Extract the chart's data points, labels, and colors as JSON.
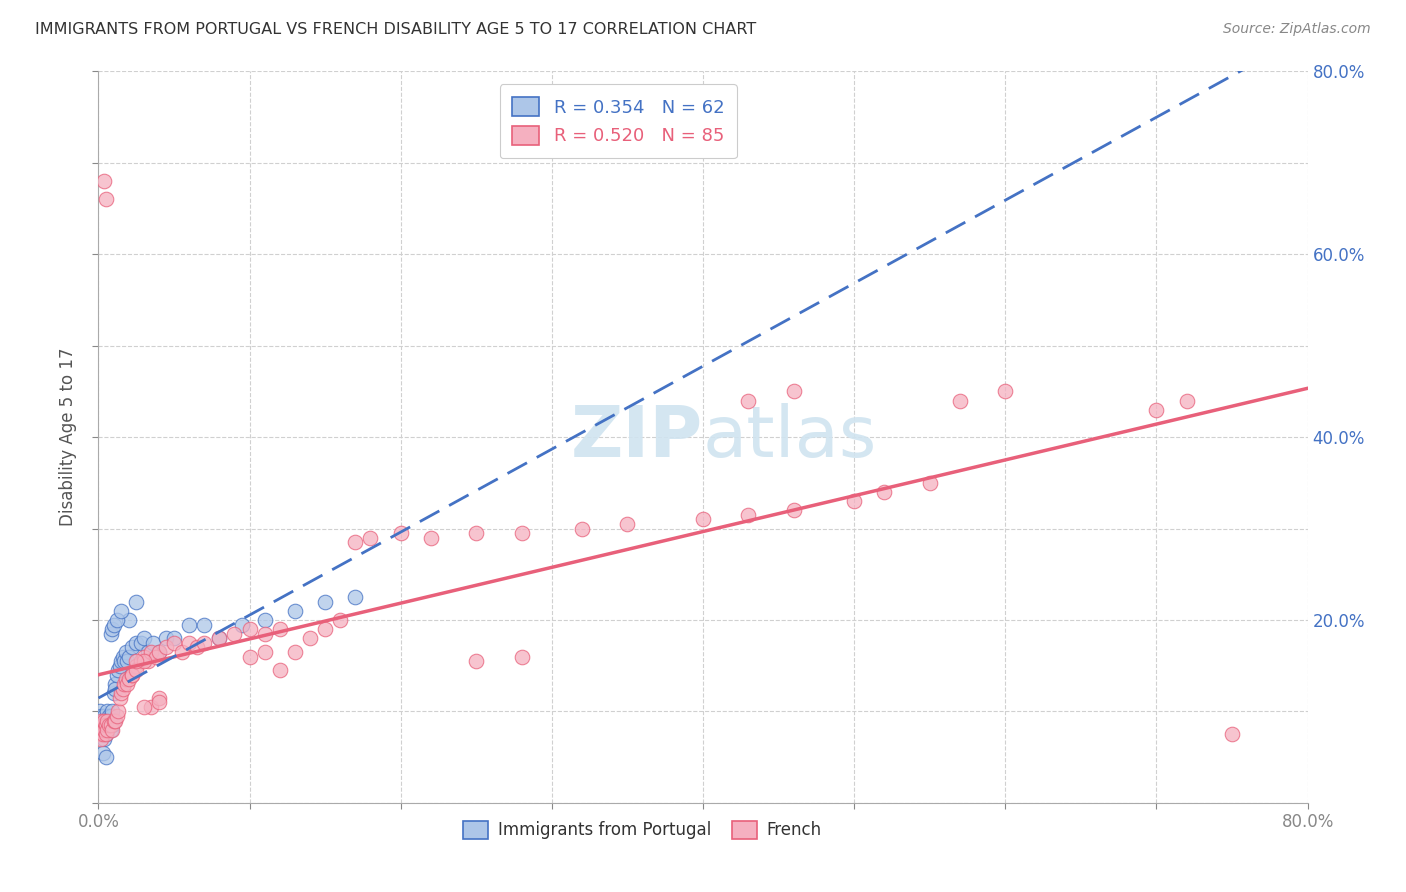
{
  "title": "IMMIGRANTS FROM PORTUGAL VS FRENCH DISABILITY AGE 5 TO 17 CORRELATION CHART",
  "source": "Source: ZipAtlas.com",
  "ylabel": "Disability Age 5 to 17",
  "xlim": [
    0.0,
    0.8
  ],
  "ylim": [
    0.0,
    0.8
  ],
  "legend_label1": "Immigrants from Portugal",
  "legend_label2": "French",
  "R1": 0.354,
  "N1": 62,
  "R2": 0.52,
  "N2": 85,
  "color1": "#adc6e8",
  "color2": "#f5b0c0",
  "line_color1": "#4472c4",
  "line_color2": "#e8607a",
  "watermark_color": "#d0e4f0",
  "background": "#ffffff",
  "grid_color": "#d0d0d0",
  "blue_x": [
    0.001,
    0.001,
    0.001,
    0.002,
    0.002,
    0.002,
    0.003,
    0.003,
    0.003,
    0.004,
    0.004,
    0.004,
    0.005,
    0.005,
    0.005,
    0.006,
    0.006,
    0.007,
    0.007,
    0.008,
    0.008,
    0.009,
    0.009,
    0.01,
    0.01,
    0.011,
    0.011,
    0.012,
    0.013,
    0.014,
    0.015,
    0.016,
    0.017,
    0.018,
    0.019,
    0.02,
    0.022,
    0.025,
    0.028,
    0.03,
    0.033,
    0.036,
    0.04,
    0.045,
    0.05,
    0.06,
    0.07,
    0.08,
    0.095,
    0.11,
    0.13,
    0.15,
    0.17,
    0.02,
    0.025,
    0.008,
    0.009,
    0.01,
    0.012,
    0.015,
    0.003,
    0.005
  ],
  "blue_y": [
    0.085,
    0.1,
    0.075,
    0.09,
    0.08,
    0.095,
    0.085,
    0.075,
    0.09,
    0.08,
    0.095,
    0.07,
    0.085,
    0.075,
    0.09,
    0.08,
    0.1,
    0.085,
    0.095,
    0.08,
    0.095,
    0.085,
    0.1,
    0.09,
    0.12,
    0.13,
    0.125,
    0.14,
    0.145,
    0.15,
    0.155,
    0.16,
    0.155,
    0.165,
    0.155,
    0.16,
    0.17,
    0.175,
    0.175,
    0.18,
    0.165,
    0.175,
    0.165,
    0.18,
    0.18,
    0.195,
    0.195,
    0.18,
    0.195,
    0.2,
    0.21,
    0.22,
    0.225,
    0.2,
    0.22,
    0.185,
    0.19,
    0.195,
    0.2,
    0.21,
    0.055,
    0.05
  ],
  "pink_x": [
    0.001,
    0.001,
    0.002,
    0.002,
    0.003,
    0.003,
    0.004,
    0.004,
    0.005,
    0.005,
    0.006,
    0.006,
    0.007,
    0.008,
    0.009,
    0.01,
    0.011,
    0.012,
    0.013,
    0.014,
    0.015,
    0.016,
    0.017,
    0.018,
    0.019,
    0.02,
    0.022,
    0.025,
    0.028,
    0.03,
    0.033,
    0.035,
    0.038,
    0.04,
    0.045,
    0.05,
    0.055,
    0.06,
    0.065,
    0.07,
    0.08,
    0.09,
    0.1,
    0.11,
    0.12,
    0.13,
    0.14,
    0.15,
    0.16,
    0.17,
    0.18,
    0.2,
    0.22,
    0.25,
    0.28,
    0.32,
    0.35,
    0.4,
    0.43,
    0.46,
    0.5,
    0.52,
    0.55,
    0.57,
    0.6,
    0.43,
    0.46,
    0.022,
    0.025,
    0.03,
    0.035,
    0.04,
    0.1,
    0.11,
    0.12,
    0.25,
    0.28,
    0.025,
    0.03,
    0.04,
    0.7,
    0.72,
    0.005,
    0.004,
    0.75
  ],
  "pink_y": [
    0.08,
    0.075,
    0.07,
    0.09,
    0.085,
    0.075,
    0.08,
    0.09,
    0.075,
    0.085,
    0.08,
    0.09,
    0.085,
    0.085,
    0.08,
    0.09,
    0.09,
    0.095,
    0.1,
    0.115,
    0.12,
    0.125,
    0.13,
    0.135,
    0.13,
    0.135,
    0.14,
    0.15,
    0.155,
    0.16,
    0.155,
    0.165,
    0.16,
    0.165,
    0.17,
    0.175,
    0.165,
    0.175,
    0.17,
    0.175,
    0.18,
    0.185,
    0.19,
    0.185,
    0.19,
    0.165,
    0.18,
    0.19,
    0.2,
    0.285,
    0.29,
    0.295,
    0.29,
    0.295,
    0.295,
    0.3,
    0.305,
    0.31,
    0.315,
    0.32,
    0.33,
    0.34,
    0.35,
    0.44,
    0.45,
    0.44,
    0.45,
    0.14,
    0.145,
    0.155,
    0.105,
    0.115,
    0.16,
    0.165,
    0.145,
    0.155,
    0.16,
    0.155,
    0.105,
    0.11,
    0.43,
    0.44,
    0.66,
    0.68,
    0.075
  ]
}
